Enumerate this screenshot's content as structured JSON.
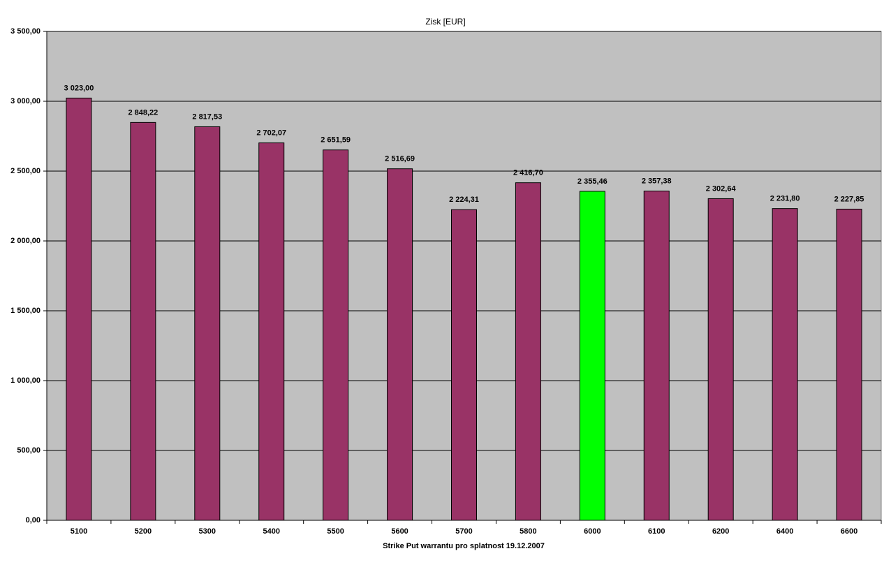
{
  "chart_data": {
    "type": "bar",
    "title": "Zisk [EUR]",
    "x_label": "Strike Put warrantu pro splatnost 19.12.2007",
    "categories": [
      "5100",
      "5200",
      "5300",
      "5400",
      "5500",
      "5600",
      "5700",
      "5800",
      "6000",
      "6100",
      "6200",
      "6400",
      "6600"
    ],
    "values": [
      3023.0,
      2848.22,
      2817.53,
      2702.07,
      2651.59,
      2516.69,
      2224.31,
      2416.7,
      2355.46,
      2357.38,
      2302.64,
      2231.8,
      2227.85
    ],
    "value_labels": [
      "3 023,00",
      "2 848,22",
      "2 817,53",
      "2 702,07",
      "2 651,59",
      "2 516,69",
      "2 224,31",
      "2 416,70",
      "2 355,46",
      "2 357,38",
      "2 302,64",
      "2 231,80",
      "2 227,85"
    ],
    "colors": [
      "#993366",
      "#993366",
      "#993366",
      "#993366",
      "#993366",
      "#993366",
      "#993366",
      "#993366",
      "#00ff00",
      "#993366",
      "#993366",
      "#993366",
      "#993366"
    ],
    "ylim": [
      0,
      3500
    ],
    "yticks": [
      {
        "value": 0,
        "label": "0,00"
      },
      {
        "value": 500,
        "label": "500,00"
      },
      {
        "value": 1000,
        "label": "1 000,00"
      },
      {
        "value": 1500,
        "label": "1 500,00"
      },
      {
        "value": 2000,
        "label": "2 000,00"
      },
      {
        "value": 2500,
        "label": "2 500,00"
      },
      {
        "value": 3000,
        "label": "3 000,00"
      },
      {
        "value": 3500,
        "label": "3 500,00"
      }
    ],
    "grid": true,
    "plot_background": "#c0c0c0"
  }
}
